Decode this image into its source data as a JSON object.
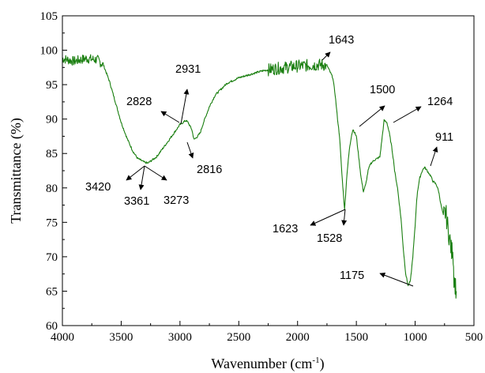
{
  "chart_data": {
    "type": "line",
    "title": "",
    "xlabel_main": "Wavenumber (cm",
    "xlabel_sup": "-1",
    "xlabel_close": ")",
    "ylabel": "Transmittance (%)",
    "xlim": [
      4000,
      500
    ],
    "ylim": [
      60,
      105
    ],
    "x_reversed": true,
    "grid": false,
    "legend": "none",
    "line_color": "#1a7f10",
    "x_ticks": [
      4000,
      3500,
      3000,
      2500,
      2000,
      1500,
      1000,
      500
    ],
    "y_ticks": [
      60,
      65,
      70,
      75,
      80,
      85,
      90,
      95,
      100,
      105
    ],
    "series": [
      {
        "x": [
          4000,
          3900,
          3800,
          3700,
          3650,
          3600,
          3550,
          3500,
          3450,
          3400,
          3361,
          3300,
          3273,
          3200,
          3100,
          3000,
          2950,
          2931,
          2900,
          2880,
          2850,
          2828,
          2800,
          2750,
          2700,
          2600,
          2500,
          2400,
          2300,
          2200,
          2100,
          2000,
          1900,
          1800,
          1750,
          1700,
          1680,
          1660,
          1643,
          1623,
          1600,
          1580,
          1560,
          1540,
          1528,
          1500,
          1480,
          1460,
          1440,
          1420,
          1400,
          1380,
          1350,
          1300,
          1264,
          1240,
          1220,
          1200,
          1180,
          1175,
          1150,
          1120,
          1100,
          1080,
          1060,
          1040,
          1020,
          1000,
          990,
          980,
          960,
          940,
          920,
          911,
          890,
          870,
          850,
          820,
          800,
          780,
          760,
          740,
          720,
          700,
          690,
          680,
          670,
          660,
          650
        ],
        "y": [
          98.8,
          98.4,
          98.8,
          98.6,
          97.8,
          95.5,
          92.5,
          89.5,
          87.2,
          85.3,
          84.3,
          83.7,
          83.6,
          84.5,
          86.8,
          89.2,
          89.8,
          89.5,
          88.5,
          87.0,
          87.5,
          88.0,
          89.5,
          91.8,
          93.5,
          95.2,
          96.0,
          96.5,
          97.0,
          97.3,
          97.5,
          97.7,
          97.8,
          97.9,
          97.8,
          96.0,
          93.5,
          90.0,
          87.5,
          82.0,
          76.8,
          82.0,
          85.5,
          87.8,
          88.5,
          87.5,
          84.5,
          81.5,
          79.5,
          80.5,
          82.5,
          83.5,
          84.0,
          84.5,
          89.8,
          89.5,
          88.0,
          86.0,
          83.5,
          82.5,
          80.0,
          75.5,
          71.0,
          67.5,
          65.8,
          66.5,
          70.0,
          74.5,
          77.5,
          79.5,
          81.5,
          82.5,
          83.0,
          82.8,
          82.3,
          81.8,
          81.0,
          80.5,
          79.5,
          77.5,
          76.0,
          76.5,
          74.0,
          72.0,
          70.5,
          71.5,
          67.0,
          66.0,
          65.0
        ]
      }
    ],
    "annotations": [
      {
        "text": "1643"
      },
      {
        "text": "2931"
      },
      {
        "text": "2828"
      },
      {
        "text": "1500"
      },
      {
        "text": "1264"
      },
      {
        "text": "911"
      },
      {
        "text": "2816"
      },
      {
        "text": "3420"
      },
      {
        "text": "3361"
      },
      {
        "text": "3273"
      },
      {
        "text": "1623"
      },
      {
        "text": "1528"
      },
      {
        "text": "1175"
      }
    ]
  }
}
